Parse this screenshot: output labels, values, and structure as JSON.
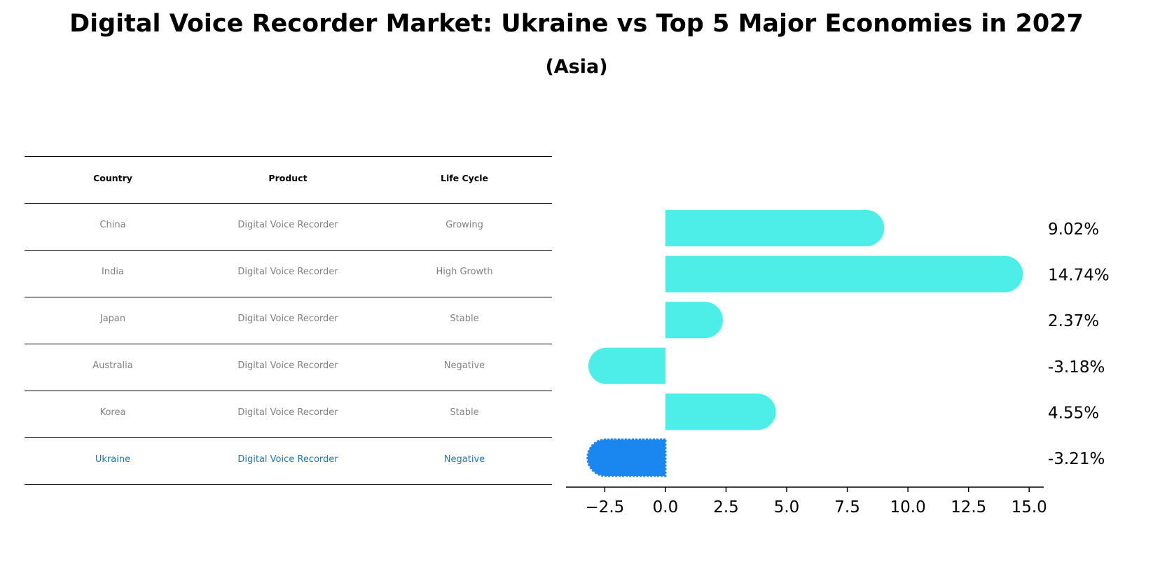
{
  "title": "Digital Voice Recorder Market: Ukraine vs Top 5 Major Economies in 2027",
  "subtitle": "(Asia)",
  "table": {
    "headers": [
      "Country",
      "Product",
      "Life Cycle"
    ],
    "rows": [
      [
        "China",
        "Digital Voice Recorder",
        "Growing"
      ],
      [
        "India",
        "Digital Voice Recorder",
        "High Growth"
      ],
      [
        "Japan",
        "Digital Voice Recorder",
        "Stable"
      ],
      [
        "Australia",
        "Digital Voice Recorder",
        "Negative"
      ],
      [
        "Korea",
        "Digital Voice Recorder",
        "Stable"
      ],
      [
        "Ukraine",
        "Digital Voice Recorder",
        "Negative"
      ]
    ],
    "highlight_row": 5,
    "highlight_color": "#1f77b4"
  },
  "chart_data": {
    "type": "bar",
    "orientation": "horizontal",
    "categories": [
      "China",
      "India",
      "Japan",
      "Australia",
      "Korea",
      "Ukraine"
    ],
    "values": [
      9.02,
      14.74,
      2.37,
      -3.18,
      4.55,
      -3.21
    ],
    "value_labels": [
      "9.02%",
      "14.74%",
      "2.37%",
      "-3.18%",
      "4.55%",
      "-3.21%"
    ],
    "xlim": [
      -4.1,
      15.6
    ],
    "xticks": [
      -2.5,
      0.0,
      2.5,
      5.0,
      7.5,
      10.0,
      12.5,
      15.0
    ],
    "xtick_labels": [
      "−2.5",
      "0.0",
      "2.5",
      "5.0",
      "7.5",
      "10.0",
      "12.5",
      "15.0"
    ],
    "bar_color": "#4deee8",
    "highlight_color": "#1a86f0",
    "highlight_index": 5,
    "grid": false
  }
}
